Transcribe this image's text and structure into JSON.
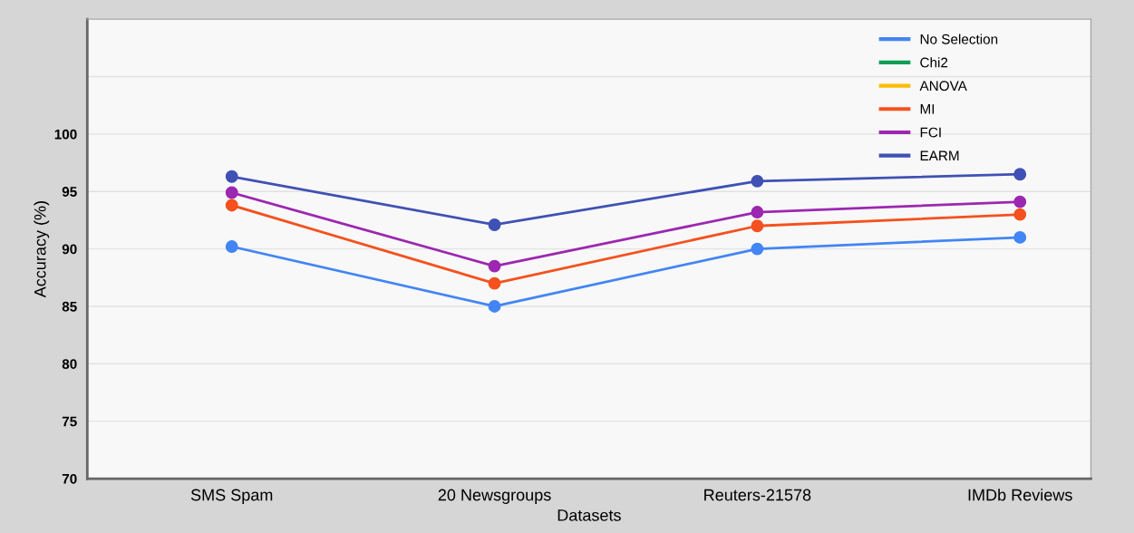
{
  "chart_data": {
    "type": "line",
    "xlabel": "Datasets",
    "ylabel": "Accuracy (%)",
    "categories": [
      "SMS Spam",
      "20 Newsgroups",
      "Reuters-21578",
      "IMDb Reviews"
    ],
    "series": [
      {
        "name": "No Selection",
        "color": "#4285f4",
        "values": [
          90.2,
          85,
          90,
          91
        ]
      },
      {
        "name": "Chi2",
        "color": "#0f9d58",
        "values": [
          null,
          null,
          null,
          null
        ]
      },
      {
        "name": "ANOVA",
        "color": "#fbbc04",
        "values": [
          null,
          null,
          null,
          null
        ]
      },
      {
        "name": "MI",
        "color": "#f4511e",
        "values": [
          93.8,
          87,
          92,
          93
        ]
      },
      {
        "name": "FCI",
        "color": "#9c27b0",
        "values": [
          94.9,
          88.5,
          93.2,
          94.1
        ]
      },
      {
        "name": "EARM",
        "color": "#3f51b5",
        "values": [
          96.3,
          92.1,
          95.9,
          96.5
        ]
      }
    ],
    "ylim": [
      70,
      110
    ],
    "yticks": [
      70,
      75,
      80,
      85,
      90,
      95,
      100,
      {
        "value": 105,
        "label": null
      },
      {
        "value": 110,
        "label": null
      }
    ],
    "grid": "y",
    "legend": "top right",
    "marker": "circle",
    "line_style": "solid"
  }
}
